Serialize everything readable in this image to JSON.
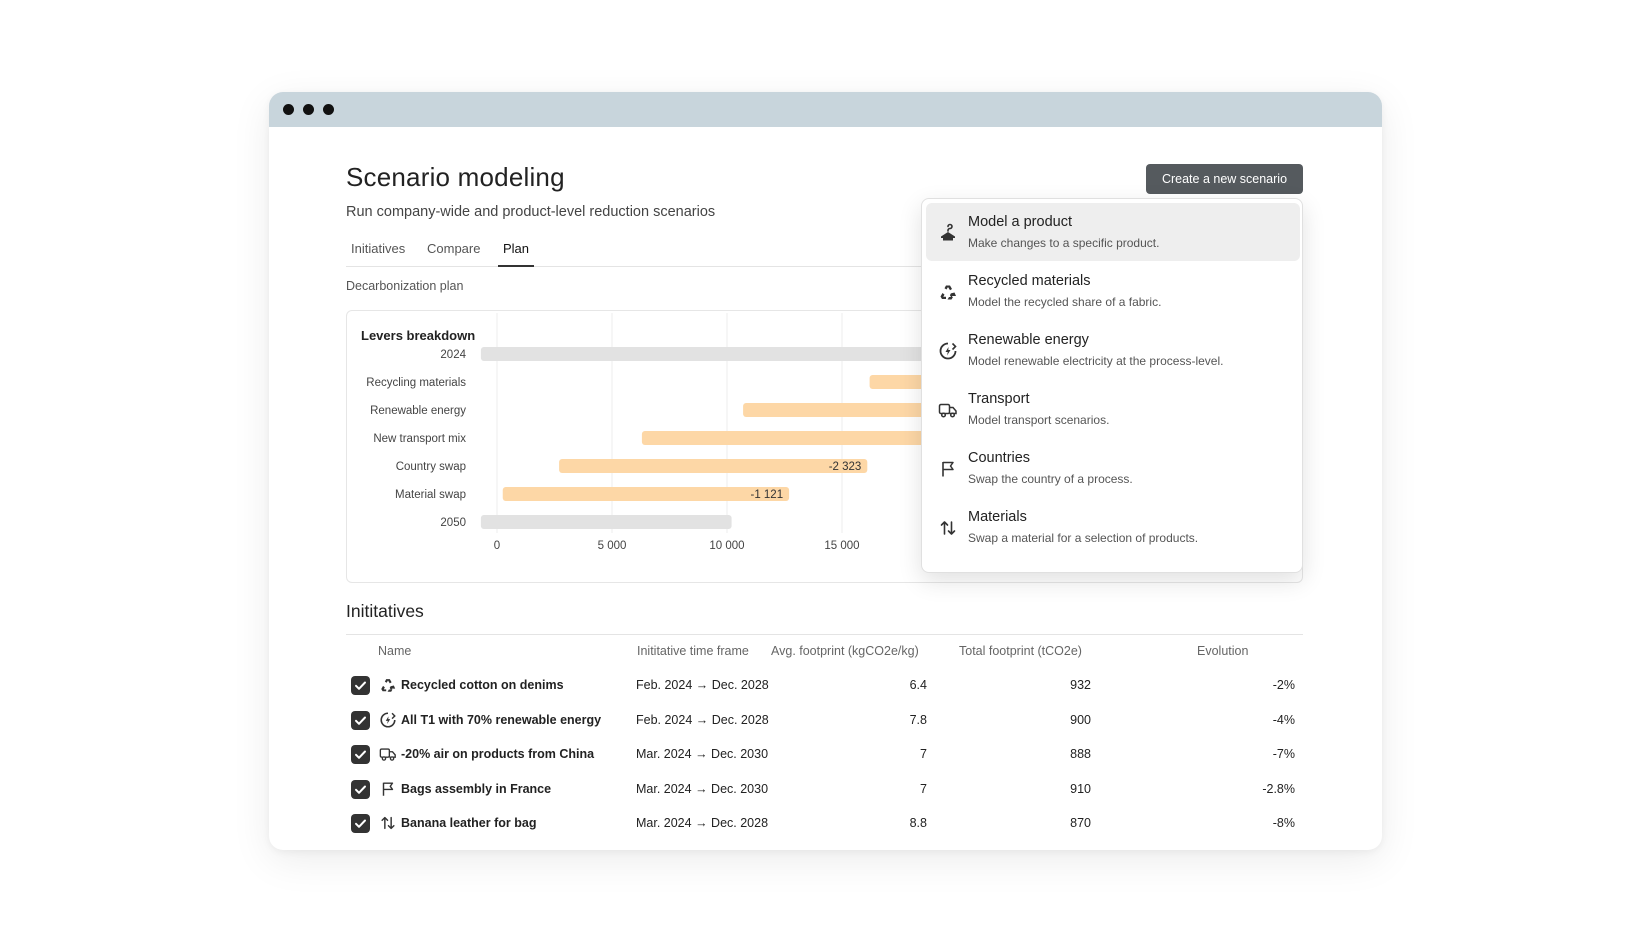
{
  "page": {
    "title": "Scenario modeling",
    "subtitle": "Run company-wide and product-level reduction scenarios",
    "create_button": "Create a new scenario"
  },
  "tabs": [
    {
      "label": "Initiatives",
      "active": false
    },
    {
      "label": "Compare",
      "active": false
    },
    {
      "label": "Plan",
      "active": true
    }
  ],
  "section_label": "Decarbonization plan",
  "dropdown": {
    "items": [
      {
        "title": "Model a product",
        "description": "Make changes to a specific product.",
        "icon": "hanger-icon",
        "highlighted": true
      },
      {
        "title": "Recycled materials",
        "description": "Model the recycled share of a fabric.",
        "icon": "recycle-icon",
        "highlighted": false
      },
      {
        "title": "Renewable energy",
        "description": "Model renewable electricity at the process-level.",
        "icon": "renewable-energy-icon",
        "highlighted": false
      },
      {
        "title": "Transport",
        "description": "Model transport scenarios.",
        "icon": "truck-icon",
        "highlighted": false
      },
      {
        "title": "Countries",
        "description": "Swap the country of a process.",
        "icon": "flag-icon",
        "highlighted": false
      },
      {
        "title": "Materials",
        "description": "Swap a material for a selection of products.",
        "icon": "swap-arrows-icon",
        "highlighted": false
      }
    ]
  },
  "chart_data": {
    "type": "bar",
    "subtype": "waterfall-horizontal",
    "title": "Levers breakdown",
    "categories": [
      "2024",
      "Recycling materials",
      "Renewable energy",
      "New transport mix",
      "Country swap",
      "Material swap",
      "2050"
    ],
    "bars": [
      {
        "category": "2024",
        "start": -700,
        "end": 20000,
        "kind": "total",
        "label": ""
      },
      {
        "category": "Recycling materials",
        "start": 16200,
        "end": 20000,
        "kind": "lever",
        "label": ""
      },
      {
        "category": "Renewable energy",
        "start": 10700,
        "end": 20000,
        "kind": "lever",
        "label": ""
      },
      {
        "category": "New transport mix",
        "start": 6300,
        "end": 20000,
        "kind": "lever",
        "label": ""
      },
      {
        "category": "Country swap",
        "start": 2700,
        "end": 16100,
        "kind": "lever",
        "label": "-2 323"
      },
      {
        "category": "Material swap",
        "start": 250,
        "end": 12700,
        "kind": "lever",
        "label": "-1 121"
      },
      {
        "category": "2050",
        "start": -700,
        "end": 10200,
        "kind": "total",
        "label": ""
      }
    ],
    "x_ticks": [
      "0",
      "5 000",
      "10 000",
      "15 000"
    ],
    "x_tick_values": [
      0,
      5000,
      10000,
      15000
    ],
    "xlim": [
      0,
      20000
    ],
    "grid": true,
    "colors": {
      "lever": "#fdd7a6",
      "total": "#e2e2e2",
      "grid": "#ececec"
    }
  },
  "initiatives": {
    "title": "Inititatives",
    "columns": [
      "Name",
      "Inititative  time frame",
      "Avg. footprint (kgCO2e/kg)",
      "Total footprint (tCO2e)",
      "Evolution"
    ],
    "rows": [
      {
        "checked": true,
        "icon": "recycle-icon",
        "name": "Recycled cotton on denims",
        "timeframe": "Feb. 2024 → Dec. 2028",
        "avg": "6.4",
        "total": "932",
        "evolution": "-2%"
      },
      {
        "checked": true,
        "icon": "renewable-energy-icon",
        "name": "All T1 with 70% renewable energy",
        "timeframe": "Feb. 2024 → Dec. 2028",
        "avg": "7.8",
        "total": "900",
        "evolution": "-4%"
      },
      {
        "checked": true,
        "icon": "truck-icon",
        "name": "-20% air on products from China",
        "timeframe": "Mar. 2024 → Dec. 2030",
        "avg": "7",
        "total": "888",
        "evolution": "-7%"
      },
      {
        "checked": true,
        "icon": "flag-icon",
        "name": "Bags assembly in France",
        "timeframe": "Mar. 2024 → Dec. 2030",
        "avg": "7",
        "total": "910",
        "evolution": "-2.8%"
      },
      {
        "checked": true,
        "icon": "swap-arrows-icon",
        "name": "Banana leather for bag",
        "timeframe": "Mar. 2024 → Dec. 2028",
        "avg": "8.8",
        "total": "870",
        "evolution": "-8%"
      }
    ]
  }
}
